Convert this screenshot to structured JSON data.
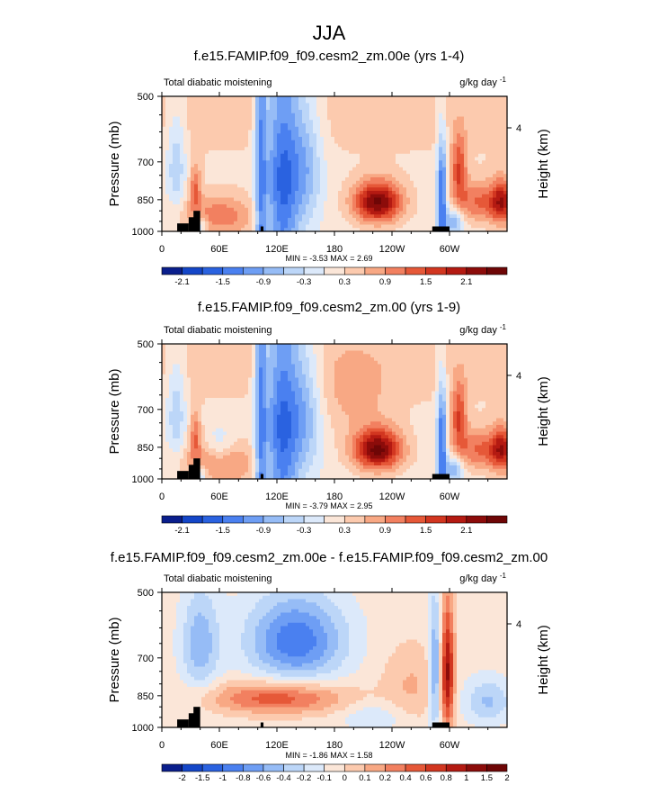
{
  "title": "JJA",
  "panels": [
    {
      "title": "f.e15.FAMIP.f09_f09.cesm2_zm.00e (yrs 1-4)",
      "left_label": "Total diabatic moistening",
      "units_prefix": "g/kg day",
      "units_exp": "-1",
      "ylabel": "Pressure (mb)",
      "y2label": "Height (km)",
      "min_text": "MIN =  -3.53  MAX =   2.69"
    },
    {
      "title": "f.e15.FAMIP.f09_f09.cesm2_zm.00 (yrs 1-9)",
      "left_label": "Total diabatic moistening",
      "units_prefix": "g/kg day",
      "units_exp": "-1",
      "ylabel": "Pressure (mb)",
      "y2label": "Height (km)",
      "min_text": "MIN =  -3.79  MAX =   2.95"
    },
    {
      "title": "f.e15.FAMIP.f09_f09.cesm2_zm.00e - f.e15.FAMIP.f09_f09.cesm2_zm.00",
      "left_label": "Total diabatic moistening",
      "units_prefix": "g/kg day",
      "units_exp": "-1",
      "ylabel": "Pressure (mb)",
      "y2label": "Height (km)",
      "min_text": "MIN =  -1.86  MAX =   1.58"
    }
  ],
  "chart_data": [
    {
      "type": "heatmap",
      "title": "f.e15.FAMIP.f09_f09.cesm2_zm.00e (yrs 1-4)",
      "xlabel": "",
      "ylabel": "Pressure (mb)",
      "y2label": "Height (km)",
      "xticks": [
        "0",
        "60E",
        "120E",
        "180",
        "120W",
        "60W"
      ],
      "xtick_values": [
        0,
        60,
        120,
        180,
        240,
        300
      ],
      "xlim": [
        0,
        360
      ],
      "yticks": [
        "500",
        "700",
        "850",
        "1000"
      ],
      "ytick_values": [
        500,
        700,
        850,
        1000
      ],
      "ylim": [
        1000,
        500
      ],
      "y2ticks": [
        "4"
      ],
      "y2tick_values": [
        4
      ],
      "units": "g/kg day-1",
      "min": -3.53,
      "max": 2.69,
      "colorbar_levels": [
        "-2.1",
        "-1.5",
        "-0.9",
        "-0.3",
        "0.3",
        "0.9",
        "1.5",
        "2.1"
      ],
      "colors": [
        "#0a1e8c",
        "#1446c8",
        "#2a62e0",
        "#4a80f0",
        "#6e9ef4",
        "#96bcf6",
        "#bcd6f8",
        "#dce9fa",
        "#fbe6d8",
        "#fccaae",
        "#f8a884",
        "#f28060",
        "#e65838",
        "#d23620",
        "#b41a12",
        "#8c0c0a",
        "#6e0606"
      ]
    },
    {
      "type": "heatmap",
      "title": "f.e15.FAMIP.f09_f09.cesm2_zm.00 (yrs 1-9)",
      "xlabel": "",
      "ylabel": "Pressure (mb)",
      "y2label": "Height (km)",
      "xticks": [
        "0",
        "60E",
        "120E",
        "180",
        "120W",
        "60W"
      ],
      "xtick_values": [
        0,
        60,
        120,
        180,
        240,
        300
      ],
      "xlim": [
        0,
        360
      ],
      "yticks": [
        "500",
        "700",
        "850",
        "1000"
      ],
      "ytick_values": [
        500,
        700,
        850,
        1000
      ],
      "ylim": [
        1000,
        500
      ],
      "y2ticks": [
        "4"
      ],
      "y2tick_values": [
        4
      ],
      "units": "g/kg day-1",
      "min": -3.79,
      "max": 2.95,
      "colorbar_levels": [
        "-2.1",
        "-1.5",
        "-0.9",
        "-0.3",
        "0.3",
        "0.9",
        "1.5",
        "2.1"
      ],
      "colors": [
        "#0a1e8c",
        "#1446c8",
        "#2a62e0",
        "#4a80f0",
        "#6e9ef4",
        "#96bcf6",
        "#bcd6f8",
        "#dce9fa",
        "#fbe6d8",
        "#fccaae",
        "#f8a884",
        "#f28060",
        "#e65838",
        "#d23620",
        "#b41a12",
        "#8c0c0a",
        "#6e0606"
      ]
    },
    {
      "type": "heatmap",
      "title": "f.e15.FAMIP.f09_f09.cesm2_zm.00e - f.e15.FAMIP.f09_f09.cesm2_zm.00",
      "xlabel": "",
      "ylabel": "Pressure (mb)",
      "y2label": "Height (km)",
      "xticks": [
        "0",
        "60E",
        "120E",
        "180",
        "120W",
        "60W"
      ],
      "xtick_values": [
        0,
        60,
        120,
        180,
        240,
        300
      ],
      "xlim": [
        0,
        360
      ],
      "yticks": [
        "500",
        "700",
        "850",
        "1000"
      ],
      "ytick_values": [
        500,
        700,
        850,
        1000
      ],
      "ylim": [
        1000,
        500
      ],
      "y2ticks": [
        "4"
      ],
      "y2tick_values": [
        4
      ],
      "units": "g/kg day-1",
      "min": -1.86,
      "max": 1.58,
      "colorbar_levels": [
        "-2",
        "-1.5",
        "-1",
        "-0.8",
        "-0.6",
        "-0.4",
        "-0.2",
        "-0.1",
        "0",
        "0.1",
        "0.2",
        "0.4",
        "0.6",
        "0.8",
        "1",
        "1.5",
        "2"
      ],
      "colors": [
        "#0a1e8c",
        "#1446c8",
        "#2a62e0",
        "#4a80f0",
        "#6e9ef4",
        "#96bcf6",
        "#bcd6f8",
        "#dce9fa",
        "#fbe6d8",
        "#fccaae",
        "#f8a884",
        "#f28060",
        "#e65838",
        "#d23620",
        "#b41a12",
        "#8c0c0a",
        "#6e0606"
      ]
    }
  ]
}
